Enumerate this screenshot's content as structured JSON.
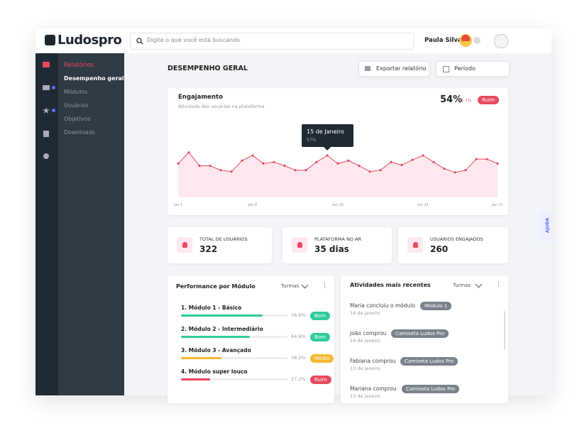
{
  "header": {
    "logo": "Ludospro",
    "search_placeholder": "Digite o que você está buscando",
    "user_name": "Paula Silva"
  },
  "sidebar": {
    "section": "Relatórios",
    "items": [
      "Desempenho geral",
      "Módulos",
      "Usuários",
      "Objetivos",
      "Downloads"
    ]
  },
  "page": {
    "title": "DESEMPENHO GERAL",
    "export_button": "Exportar relatório",
    "period_button": "Período"
  },
  "engagement": {
    "title": "Engajamento",
    "subtitle": "Atividade dos usuários na plataforma",
    "value": "54%",
    "change": "↓ 1%",
    "status": "Ruim",
    "tooltip": {
      "title": "15 de Janeiro",
      "value_label": "57%"
    },
    "chart_data": {
      "type": "line",
      "categories": [
        "Jan 1",
        null,
        null,
        null,
        null,
        null,
        null,
        "Jan 8",
        null,
        null,
        null,
        null,
        null,
        null,
        null,
        "Jan 16",
        null,
        null,
        null,
        null,
        null,
        null,
        null,
        "Jan 24",
        null,
        null,
        null,
        null,
        null,
        null,
        "Jan 31"
      ],
      "series": [
        {
          "name": "Engajamento",
          "color": "#e84a5f",
          "values": [
            46,
            61,
            43,
            43,
            37,
            35,
            50,
            57,
            46,
            48,
            43,
            37,
            37,
            48,
            57,
            46,
            50,
            43,
            35,
            37,
            48,
            44,
            51,
            57,
            48,
            39,
            34,
            37,
            52,
            52,
            46
          ]
        }
      ],
      "ylim": [
        0,
        100
      ]
    }
  },
  "stats": [
    {
      "label": "TOTAL DE USUÁRIOS",
      "value": "322"
    },
    {
      "label": "PLATAFORMA NO AR",
      "value": "35 dias"
    },
    {
      "label": "USUÁRIOS ENGAJADOS",
      "value": "260"
    }
  ],
  "modules": {
    "title": "Performance por Módulo",
    "filter": "Turmas",
    "items": [
      {
        "name": "1. Módulo 1 - Básico",
        "value": 76.6,
        "value_label": "76.6%",
        "status": "Bom"
      },
      {
        "name": "2. Módulo 2 - Intermediário",
        "value": 64.6,
        "value_label": "64.6%",
        "status": "Bom"
      },
      {
        "name": "3. Módulo 3 - Avançado",
        "value": 38.2,
        "value_label": "38.2%",
        "status": "Médio"
      },
      {
        "name": "4. Módulo super louco",
        "value": 27.2,
        "value_label": "27.2%",
        "status": "Ruim"
      }
    ]
  },
  "activities": {
    "title": "Atividades mais recentes",
    "filter": "Turmas",
    "items": [
      {
        "text": "Maria concluiu o módulo",
        "tag": "Módulo 1",
        "date": "14 de janeiro"
      },
      {
        "text": "João comprou",
        "tag": "Camiseta Ludos Pro",
        "date": "14 de janeiro"
      },
      {
        "text": "Fabiana comprou",
        "tag": "Camiseta Ludos Pro",
        "date": "13 de janeiro"
      },
      {
        "text": "Mariana comprou",
        "tag": "Camiseta Ludos Pro",
        "date": "13 de janeiro"
      }
    ]
  },
  "help": "AJUDA"
}
